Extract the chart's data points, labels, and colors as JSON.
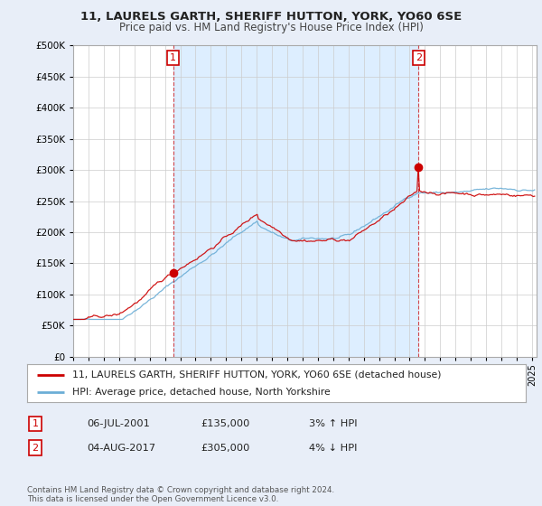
{
  "title": "11, LAURELS GARTH, SHERIFF HUTTON, YORK, YO60 6SE",
  "subtitle": "Price paid vs. HM Land Registry's House Price Index (HPI)",
  "legend_line1": "11, LAURELS GARTH, SHERIFF HUTTON, YORK, YO60 6SE (detached house)",
  "legend_line2": "HPI: Average price, detached house, North Yorkshire",
  "sale1_date": "06-JUL-2001",
  "sale1_price": "£135,000",
  "sale1_hpi": "3% ↑ HPI",
  "sale1_year": 2001.54,
  "sale1_value": 135000,
  "sale2_date": "04-AUG-2017",
  "sale2_price": "£305,000",
  "sale2_hpi": "4% ↓ HPI",
  "sale2_year": 2017.59,
  "sale2_value": 305000,
  "footer": "Contains HM Land Registry data © Crown copyright and database right 2024.\nThis data is licensed under the Open Government Licence v3.0.",
  "red_color": "#cc0000",
  "blue_color": "#6baed6",
  "shade_color": "#ddeeff",
  "bg_color": "#e8eef8",
  "plot_bg": "#ffffff",
  "grid_color": "#cccccc",
  "ylim": [
    0,
    500000
  ],
  "xlim_start": 1995.0,
  "xlim_end": 2025.3,
  "figwidth": 6.0,
  "figheight": 5.6,
  "dpi": 100
}
